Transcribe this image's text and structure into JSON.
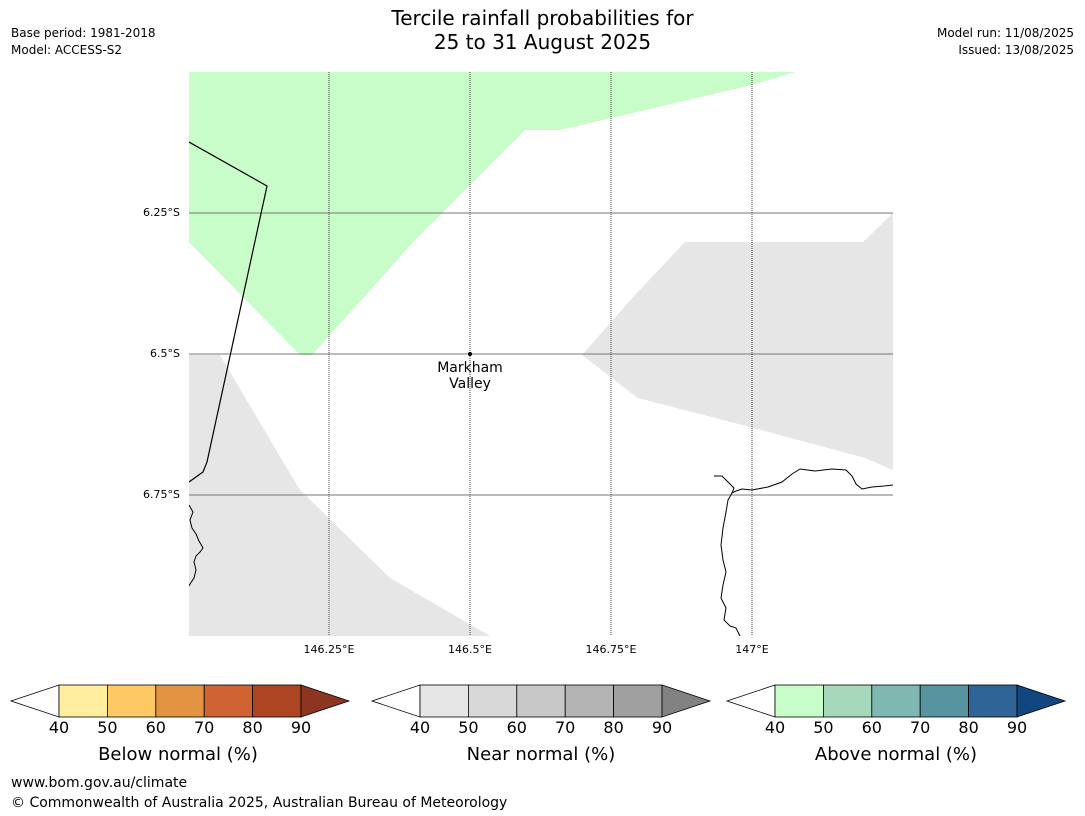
{
  "header": {
    "title_line1": "Tercile rainfall probabilities for",
    "title_line2": "25 to 31 August 2025",
    "base_period": "Base period: 1981-2018",
    "model": "Model: ACCESS-S2",
    "model_run": "Model run: 11/08/2025",
    "issued": "Issued: 13/08/2025"
  },
  "map": {
    "lat_labels": [
      "6.25°S",
      "6.5°S",
      "6.75°S"
    ],
    "lon_labels": [
      "146.25°E",
      "146.5°E",
      "146.75°E",
      "147°E"
    ],
    "place": {
      "name_line1": "Markham",
      "name_line2": "Valley",
      "lon": 146.5,
      "lat": -6.5
    },
    "colors": {
      "above_40_50": "#c8fcc8",
      "near_40_50": "#e6e6e6",
      "graticule": "#777777"
    }
  },
  "colorbars": [
    {
      "title": "Below normal (%)",
      "ticks": [
        "40",
        "50",
        "60",
        "70",
        "80",
        "90"
      ],
      "colors": [
        "#ffee9e",
        "#fec964",
        "#e39443",
        "#cf6432",
        "#ad4522",
        "#8c3520"
      ]
    },
    {
      "title": "Near normal (%)",
      "ticks": [
        "40",
        "50",
        "60",
        "70",
        "80",
        "90"
      ],
      "colors": [
        "#e6e6e6",
        "#d8d8d8",
        "#c8c8c8",
        "#b4b4b4",
        "#a0a0a0",
        "#828282"
      ]
    },
    {
      "title": "Above normal (%)",
      "ticks": [
        "40",
        "50",
        "60",
        "70",
        "80",
        "90"
      ],
      "colors": [
        "#c8fcc8",
        "#a6d8bc",
        "#7fb8b0",
        "#5893a0",
        "#2e6496",
        "#12467e"
      ]
    }
  ],
  "footer": {
    "url": "www.bom.gov.au/climate",
    "copyright": "© Commonwealth of Australia 2025, Australian Bureau of Meteorology"
  }
}
